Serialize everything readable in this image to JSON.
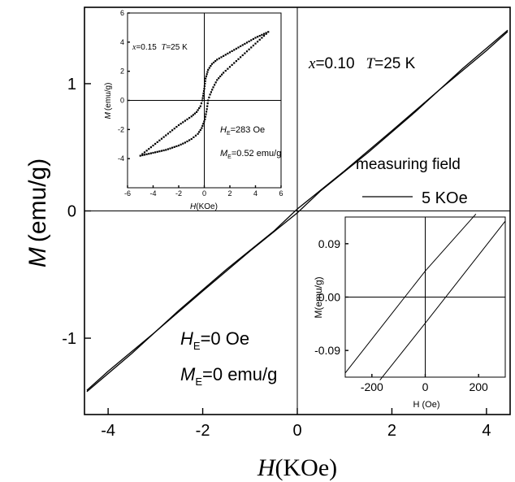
{
  "chart_data": [
    {
      "id": "main",
      "type": "line",
      "xlim": [
        -4.5,
        4.5
      ],
      "ylim": [
        -1.6,
        1.6
      ],
      "xticks": [
        -4,
        -2,
        0,
        2,
        4
      ],
      "xtick_labels": [
        "-4",
        "-2",
        "0",
        "2",
        "4"
      ],
      "yticks": [
        -1,
        0,
        1
      ],
      "ytick_labels": [
        "-1",
        "0",
        "1"
      ],
      "xlabel": {
        "symbol": "H",
        "unit": "(KOe)"
      },
      "ylabel": {
        "symbol": "M",
        "unit": "(emu/g)"
      },
      "annotations": {
        "composition": {
          "x_sym": "x",
          "x_val": "=0.10",
          "t_sym": "T",
          "t_val": "=25 K"
        },
        "he": {
          "sym": "H",
          "sub": "E",
          "val": "=0 Oe"
        },
        "me": {
          "sym": "M",
          "sub": "E",
          "val": "=0 emu/g"
        }
      },
      "legend": {
        "title": "measuring field",
        "entry": "5 KOe",
        "position": "right"
      },
      "series": [
        {
          "values": [
            [
              -4.45,
              -1.42
            ],
            [
              -3.5,
              -1.12
            ],
            [
              -2.5,
              -0.78
            ],
            [
              -1.5,
              -0.46
            ],
            [
              -1.0,
              -0.31
            ],
            [
              -0.5,
              -0.16
            ],
            [
              0.0,
              0.015
            ],
            [
              0.5,
              0.165
            ],
            [
              1.0,
              0.315
            ],
            [
              2.0,
              0.63
            ],
            [
              3.0,
              0.95
            ],
            [
              4.0,
              1.26
            ],
            [
              4.45,
              1.41
            ]
          ]
        },
        {
          "values": [
            [
              -4.45,
              -1.41
            ],
            [
              -4.0,
              -1.26
            ],
            [
              -3.0,
              -0.95
            ],
            [
              -2.0,
              -0.63
            ],
            [
              -1.0,
              -0.315
            ],
            [
              -0.5,
              -0.165
            ],
            [
              0.0,
              -0.015
            ],
            [
              0.5,
              0.16
            ],
            [
              1.0,
              0.31
            ],
            [
              1.5,
              0.46
            ],
            [
              2.5,
              0.78
            ],
            [
              3.5,
              1.12
            ],
            [
              4.45,
              1.42
            ]
          ]
        }
      ]
    },
    {
      "id": "inset_top_left",
      "type": "scatter",
      "xlim": [
        -6,
        6
      ],
      "ylim": [
        -6,
        6
      ],
      "xticks": [
        -6,
        -4,
        -2,
        0,
        2,
        4,
        6
      ],
      "xtick_labels": [
        "-6",
        "-4",
        "-2",
        "0",
        "2",
        "4",
        "6"
      ],
      "yticks": [
        -4,
        -2,
        0,
        2,
        4,
        6
      ],
      "ytick_labels": [
        "-4",
        "-2",
        "0",
        "2",
        "4",
        "6"
      ],
      "xlabel": {
        "symbol": "H",
        "unit": "(KOe)"
      },
      "ylabel": {
        "symbol": "M",
        "unit": "(emu/g)"
      },
      "annotations": {
        "composition": {
          "x_sym": "x",
          "x_val": "=0.15",
          "t_sym": "T",
          "t_val": "=25 K"
        },
        "he": {
          "sym": "H",
          "sub": "E",
          "val": "=283 Oe"
        },
        "me": {
          "sym": "M",
          "sub": "E",
          "val": "=0.52 emu/g"
        }
      },
      "series": [
        {
          "values": [
            [
              -5.0,
              -3.8
            ],
            [
              -4.5,
              -3.45
            ],
            [
              -4.0,
              -3.1
            ],
            [
              -3.5,
              -2.75
            ],
            [
              -3.0,
              -2.4
            ],
            [
              -2.5,
              -2.05
            ],
            [
              -2.0,
              -1.7
            ],
            [
              -1.5,
              -1.4
            ],
            [
              -1.0,
              -1.1
            ],
            [
              -0.6,
              -0.8
            ],
            [
              -0.3,
              -0.4
            ],
            [
              -0.15,
              0.0
            ],
            [
              0.0,
              0.8
            ],
            [
              0.1,
              1.5
            ],
            [
              0.3,
              2.1
            ],
            [
              0.6,
              2.5
            ],
            [
              1.0,
              2.8
            ],
            [
              1.5,
              3.05
            ],
            [
              2.0,
              3.3
            ],
            [
              2.5,
              3.55
            ],
            [
              3.0,
              3.8
            ],
            [
              3.5,
              4.05
            ],
            [
              4.0,
              4.3
            ],
            [
              4.5,
              4.5
            ],
            [
              5.0,
              4.7
            ]
          ]
        },
        {
          "values": [
            [
              5.0,
              4.7
            ],
            [
              4.5,
              4.3
            ],
            [
              4.0,
              3.9
            ],
            [
              3.5,
              3.5
            ],
            [
              3.0,
              3.1
            ],
            [
              2.5,
              2.7
            ],
            [
              2.0,
              2.3
            ],
            [
              1.5,
              1.9
            ],
            [
              1.0,
              1.4
            ],
            [
              0.7,
              0.9
            ],
            [
              0.45,
              0.4
            ],
            [
              0.3,
              0.0
            ],
            [
              0.2,
              -0.6
            ],
            [
              0.05,
              -1.3
            ],
            [
              -0.2,
              -1.9
            ],
            [
              -0.5,
              -2.3
            ],
            [
              -1.0,
              -2.65
            ],
            [
              -1.5,
              -2.9
            ],
            [
              -2.0,
              -3.1
            ],
            [
              -2.5,
              -3.25
            ],
            [
              -3.0,
              -3.4
            ],
            [
              -3.5,
              -3.5
            ],
            [
              -4.0,
              -3.6
            ],
            [
              -4.5,
              -3.7
            ],
            [
              -5.0,
              -3.8
            ]
          ]
        }
      ]
    },
    {
      "id": "inset_bottom_right",
      "type": "line",
      "xlim": [
        -300,
        300
      ],
      "ylim": [
        -0.135,
        0.135
      ],
      "xticks": [
        -200,
        0,
        200
      ],
      "xtick_labels": [
        "-200",
        "0",
        "200"
      ],
      "yticks": [
        -0.09,
        0.0,
        0.09
      ],
      "ytick_labels": [
        "-0.09",
        "0.00",
        "0.09"
      ],
      "xlabel": "H (Oe)",
      "ylabel": "M(emu/g)",
      "series": [
        {
          "values": [
            [
              -300,
              -0.128
            ],
            [
              0,
              0.044
            ],
            [
              190,
              0.14
            ]
          ]
        },
        {
          "values": [
            [
              -170,
              -0.14
            ],
            [
              0,
              -0.044
            ],
            [
              300,
              0.128
            ]
          ]
        }
      ]
    }
  ]
}
